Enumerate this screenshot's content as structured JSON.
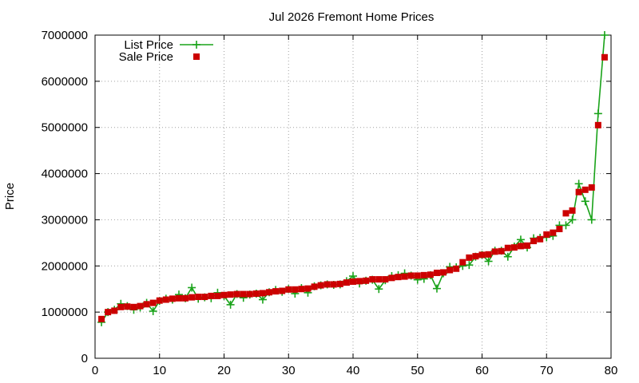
{
  "chart_data": {
    "type": "line",
    "title": "Jul 2026 Fremont Home Prices",
    "xlabel": "",
    "ylabel": "Price",
    "xlim": [
      0,
      80
    ],
    "ylim": [
      0,
      7000000
    ],
    "x_ticks": [
      0,
      10,
      20,
      30,
      40,
      50,
      60,
      70,
      80
    ],
    "y_ticks": [
      0,
      1000000,
      2000000,
      3000000,
      4000000,
      5000000,
      6000000,
      7000000
    ],
    "x_tick_labels": [
      "0",
      "10",
      "20",
      "30",
      "40",
      "50",
      "60",
      "70",
      "80"
    ],
    "y_tick_labels": [
      "0",
      "1000000",
      "2000000",
      "3000000",
      "4000000",
      "5000000",
      "6000000",
      "7000000"
    ],
    "grid": true,
    "legend_position": "top-left",
    "x": [
      1,
      2,
      3,
      4,
      5,
      6,
      7,
      8,
      9,
      10,
      11,
      12,
      13,
      14,
      15,
      16,
      17,
      18,
      19,
      20,
      21,
      22,
      23,
      24,
      25,
      26,
      27,
      28,
      29,
      30,
      31,
      32,
      33,
      34,
      35,
      36,
      37,
      38,
      39,
      40,
      41,
      42,
      43,
      44,
      45,
      46,
      47,
      48,
      49,
      50,
      51,
      52,
      53,
      54,
      55,
      56,
      57,
      58,
      59,
      60,
      61,
      62,
      63,
      64,
      65,
      66,
      67,
      68,
      69,
      70,
      71,
      72,
      73,
      74,
      75,
      76,
      77,
      78,
      79
    ],
    "series": [
      {
        "name": "List Price",
        "style": "line-plus",
        "color": "#1aa31a",
        "values": [
          780000,
          1000000,
          1050000,
          1180000,
          1130000,
          1050000,
          1100000,
          1200000,
          1020000,
          1240000,
          1290000,
          1270000,
          1380000,
          1300000,
          1530000,
          1290000,
          1320000,
          1300000,
          1420000,
          1350000,
          1160000,
          1390000,
          1310000,
          1380000,
          1400000,
          1270000,
          1430000,
          1480000,
          1440000,
          1500000,
          1400000,
          1520000,
          1420000,
          1560000,
          1580000,
          1600000,
          1590000,
          1600000,
          1670000,
          1780000,
          1620000,
          1680000,
          1700000,
          1500000,
          1690000,
          1780000,
          1800000,
          1840000,
          1790000,
          1700000,
          1720000,
          1800000,
          1510000,
          1840000,
          1980000,
          1970000,
          2000000,
          2020000,
          2200000,
          2240000,
          2100000,
          2330000,
          2330000,
          2200000,
          2420000,
          2570000,
          2400000,
          2600000,
          2610000,
          2620000,
          2650000,
          2880000,
          2880000,
          3000000,
          3780000,
          3400000,
          3000000,
          5300000,
          7000000
        ]
      },
      {
        "name": "Sale Price",
        "style": "square",
        "color": "#cc0000",
        "values": [
          850000,
          1000000,
          1030000,
          1110000,
          1120000,
          1110000,
          1130000,
          1170000,
          1200000,
          1250000,
          1270000,
          1290000,
          1300000,
          1300000,
          1320000,
          1330000,
          1330000,
          1350000,
          1350000,
          1370000,
          1380000,
          1390000,
          1390000,
          1390000,
          1400000,
          1410000,
          1430000,
          1450000,
          1460000,
          1490000,
          1490000,
          1500000,
          1510000,
          1550000,
          1580000,
          1600000,
          1600000,
          1610000,
          1640000,
          1660000,
          1670000,
          1680000,
          1710000,
          1710000,
          1710000,
          1740000,
          1760000,
          1770000,
          1790000,
          1790000,
          1800000,
          1810000,
          1850000,
          1860000,
          1910000,
          1940000,
          2080000,
          2180000,
          2210000,
          2240000,
          2250000,
          2310000,
          2320000,
          2390000,
          2400000,
          2430000,
          2440000,
          2540000,
          2580000,
          2680000,
          2720000,
          2800000,
          3140000,
          3200000,
          3600000,
          3650000,
          3700000,
          5050000,
          6520000
        ]
      }
    ]
  }
}
